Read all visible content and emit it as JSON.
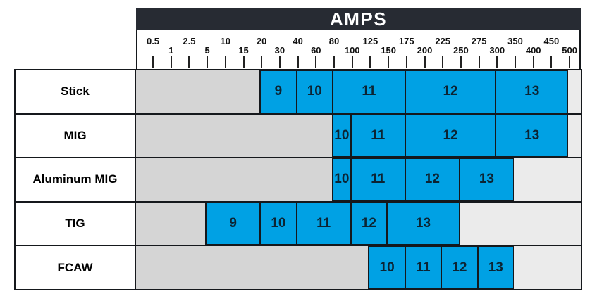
{
  "title": "AMPS",
  "colors": {
    "header_bg": "#272b33",
    "header_text": "#ffffff",
    "shade_blue": "#00a1e4",
    "no_data_gray": "#d5d5d5",
    "tail_gray": "#ebebeb",
    "border": "#15181c",
    "segment_text": "#0c2433"
  },
  "chart_data": {
    "type": "table",
    "title": "AMPS",
    "xlabel": "AMPS",
    "x_scale_note": "irregular amperage ticks at equal visual spacing",
    "x_ticks": [
      "0.5",
      "1",
      "2.5",
      "5",
      "10",
      "15",
      "20",
      "30",
      "40",
      "60",
      "80",
      "100",
      "125",
      "150",
      "175",
      "200",
      "225",
      "250",
      "275",
      "300",
      "350",
      "400",
      "450",
      "500"
    ],
    "xlim": [
      0.5,
      500
    ],
    "legend": "none",
    "rows": [
      {
        "process": "Stick",
        "segments": [
          {
            "shade": "9",
            "from": 20,
            "to": 40
          },
          {
            "shade": "10",
            "from": 40,
            "to": 80
          },
          {
            "shade": "11",
            "from": 80,
            "to": 175
          },
          {
            "shade": "12",
            "from": 175,
            "to": 300
          },
          {
            "shade": "13",
            "from": 300,
            "to": 500
          }
        ]
      },
      {
        "process": "MIG",
        "segments": [
          {
            "shade": "10",
            "from": 80,
            "to": 100
          },
          {
            "shade": "11",
            "from": 100,
            "to": 175
          },
          {
            "shade": "12",
            "from": 175,
            "to": 300
          },
          {
            "shade": "13",
            "from": 300,
            "to": 500
          }
        ]
      },
      {
        "process": "Aluminum MIG",
        "segments": [
          {
            "shade": "10",
            "from": 80,
            "to": 100
          },
          {
            "shade": "11",
            "from": 100,
            "to": 175
          },
          {
            "shade": "12",
            "from": 175,
            "to": 250
          },
          {
            "shade": "13",
            "from": 250,
            "to": 350
          }
        ]
      },
      {
        "process": "TIG",
        "segments": [
          {
            "shade": "9",
            "from": 5,
            "to": 20
          },
          {
            "shade": "10",
            "from": 20,
            "to": 40
          },
          {
            "shade": "11",
            "from": 40,
            "to": 100
          },
          {
            "shade": "12",
            "from": 100,
            "to": 150
          },
          {
            "shade": "13",
            "from": 150,
            "to": 250
          }
        ]
      },
      {
        "process": "FCAW",
        "segments": [
          {
            "shade": "10",
            "from": 125,
            "to": 175
          },
          {
            "shade": "11",
            "from": 175,
            "to": 225
          },
          {
            "shade": "12",
            "from": 225,
            "to": 275
          },
          {
            "shade": "13",
            "from": 275,
            "to": 350
          }
        ]
      }
    ]
  }
}
